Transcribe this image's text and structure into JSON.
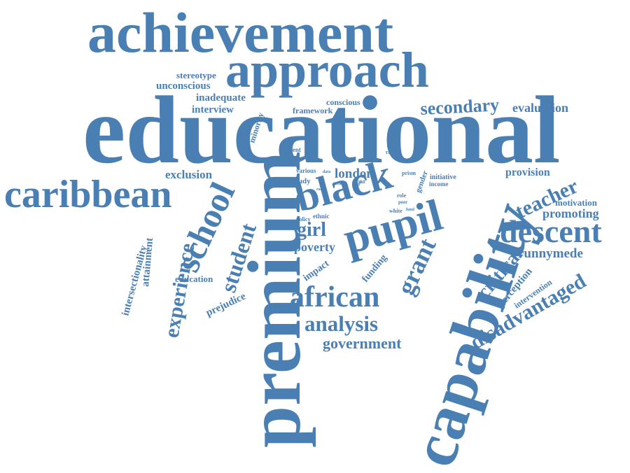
{
  "word_cloud": {
    "color": "#4a7fb3",
    "words": [
      "achievement",
      "approach",
      "educational",
      "premium",
      "capability",
      "caribbean",
      "black",
      "pupil",
      "descent",
      "school",
      "african",
      "analysis",
      "grant",
      "student",
      "experience",
      "teacher",
      "disadvantaged",
      "critical",
      "secondary",
      "girl",
      "government",
      "evaluation",
      "london",
      "promoting",
      "runnymede",
      "provision",
      "exclusion",
      "poverty",
      "stereotype",
      "unconscious",
      "inadequate",
      "interview",
      "minority",
      "conscious",
      "framework",
      "motivation",
      "perception",
      "intervention",
      "attainment",
      "intersectionality",
      "prejudice",
      "education",
      "impact",
      "funding",
      "initiative",
      "income",
      "gender",
      "study",
      "ethnic",
      "policy",
      "various",
      "current",
      "prism",
      "racial",
      "group",
      "role",
      "peer",
      "white",
      "close",
      "more",
      "data",
      "race",
      "fund",
      "hall"
    ]
  }
}
